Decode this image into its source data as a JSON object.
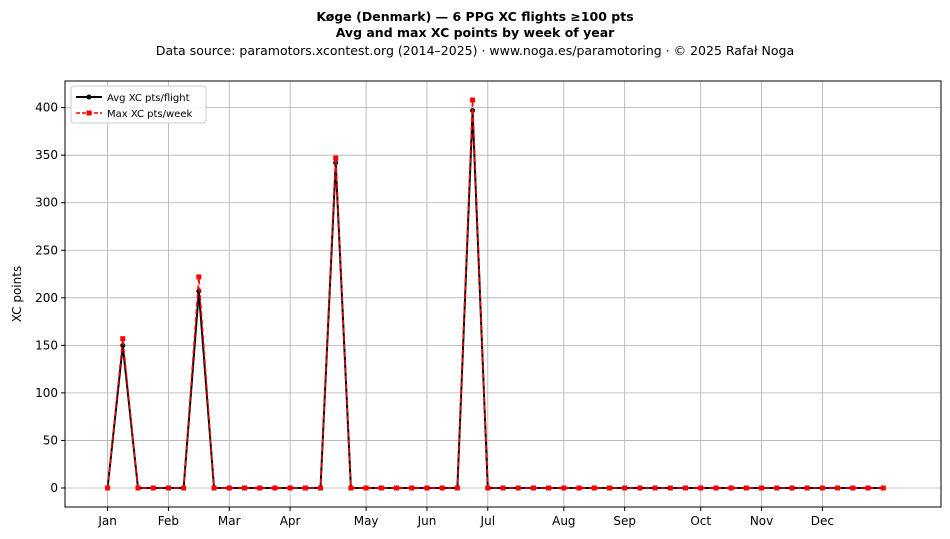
{
  "chart_data": {
    "type": "line",
    "title_line1": "Køge (Denmark)  —  6 PPG XC flights ≥100 pts",
    "title_line2": "Avg and max XC points by week of year",
    "subtitle": "Data source: paramotors.xcontest.org (2014–2025)  ·  www.noga.es/paramotoring  ·  © 2025 Rafał Noga",
    "xlabel": "",
    "ylabel": "XC points",
    "ylim": [
      -20,
      428
    ],
    "xlim": [
      -2.8,
      54.8
    ],
    "yticks": [
      0,
      50,
      100,
      150,
      200,
      250,
      300,
      350,
      400
    ],
    "month_ticks": [
      {
        "label": "Jan",
        "week": 0
      },
      {
        "label": "Feb",
        "week": 4
      },
      {
        "label": "Mar",
        "week": 8
      },
      {
        "label": "Apr",
        "week": 12
      },
      {
        "label": "May",
        "week": 17
      },
      {
        "label": "Jun",
        "week": 21
      },
      {
        "label": "Jul",
        "week": 25
      },
      {
        "label": "Aug",
        "week": 30
      },
      {
        "label": "Sep",
        "week": 34
      },
      {
        "label": "Oct",
        "week": 39
      },
      {
        "label": "Nov",
        "week": 43
      },
      {
        "label": "Dec",
        "week": 47
      }
    ],
    "grid": true,
    "legend_position": "top-left",
    "x": [
      0,
      1,
      2,
      3,
      4,
      5,
      6,
      7,
      8,
      9,
      10,
      11,
      12,
      13,
      14,
      15,
      16,
      17,
      18,
      19,
      20,
      21,
      22,
      23,
      24,
      25,
      26,
      27,
      28,
      29,
      30,
      31,
      32,
      33,
      34,
      35,
      36,
      37,
      38,
      39,
      40,
      41,
      42,
      43,
      44,
      45,
      46,
      47,
      48,
      49,
      50,
      51
    ],
    "series": [
      {
        "name": "Avg XC pts/flight",
        "color": "#000000",
        "values": [
          0,
          150,
          0,
          0,
          0,
          0,
          207,
          0,
          0,
          0,
          0,
          0,
          0,
          0,
          0,
          342,
          0,
          0,
          0,
          0,
          0,
          0,
          0,
          0,
          397,
          0,
          0,
          0,
          0,
          0,
          0,
          0,
          0,
          0,
          0,
          0,
          0,
          0,
          0,
          0,
          0,
          0,
          0,
          0,
          0,
          0,
          0,
          0,
          0,
          0,
          0,
          0
        ]
      },
      {
        "name": "Max XC pts/week",
        "color": "#ff0000",
        "values": [
          0,
          157,
          0,
          0,
          0,
          0,
          222,
          0,
          0,
          0,
          0,
          0,
          0,
          0,
          0,
          347,
          0,
          0,
          0,
          0,
          0,
          0,
          0,
          0,
          408,
          0,
          0,
          0,
          0,
          0,
          0,
          0,
          0,
          0,
          0,
          0,
          0,
          0,
          0,
          0,
          0,
          0,
          0,
          0,
          0,
          0,
          0,
          0,
          0,
          0,
          0,
          0
        ]
      }
    ]
  }
}
